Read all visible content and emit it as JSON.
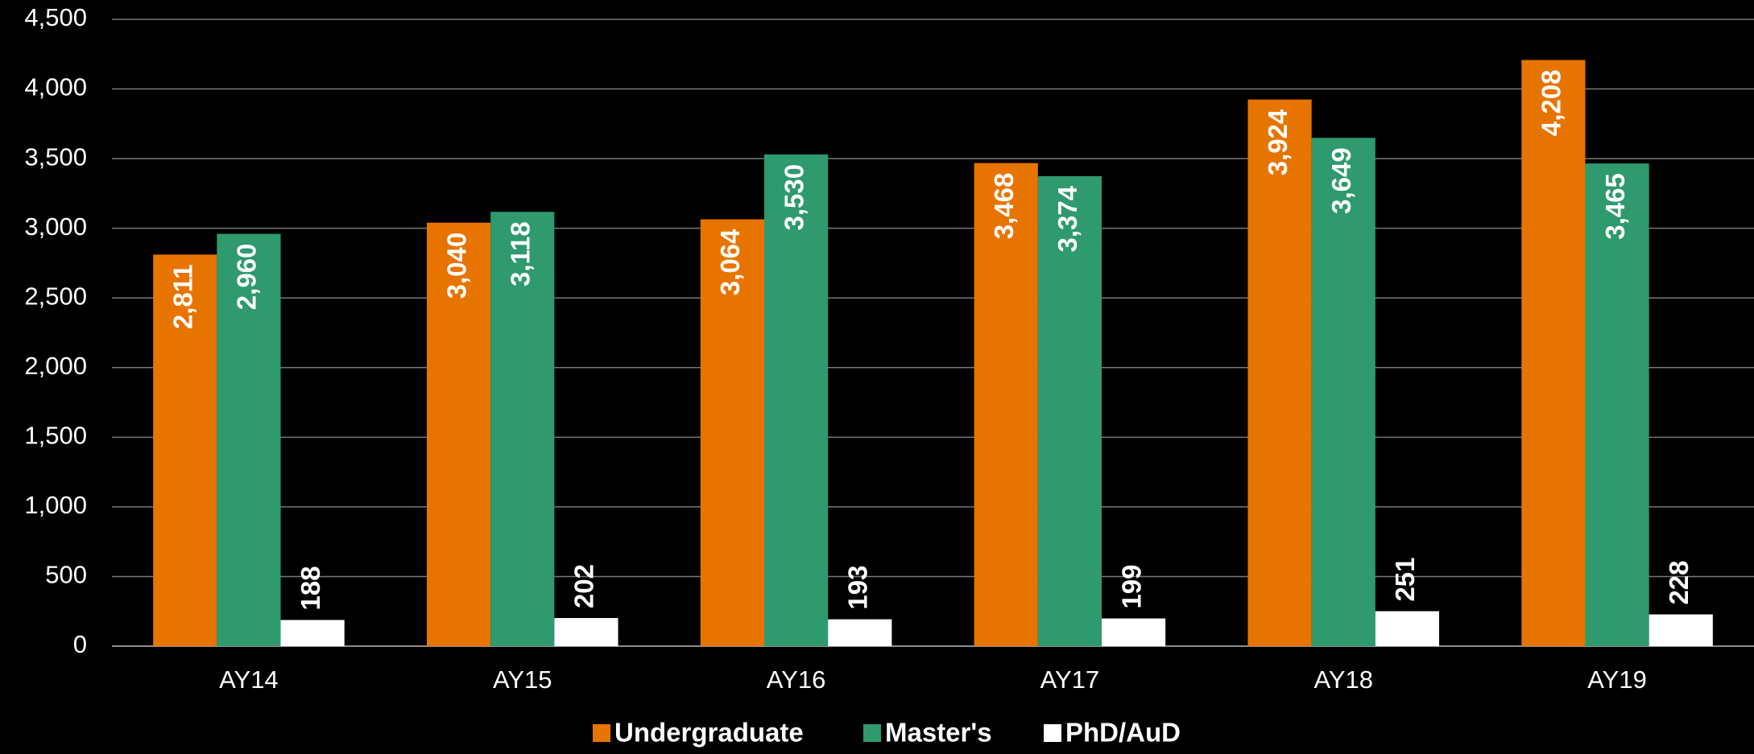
{
  "chart_data": {
    "type": "bar",
    "categories": [
      "AY14",
      "AY15",
      "AY16",
      "AY17",
      "AY18",
      "AY19"
    ],
    "series": [
      {
        "name": "Undergraduate",
        "color": "#e87400",
        "values": [
          2811,
          3040,
          3064,
          3468,
          3924,
          4208
        ],
        "value_labels": [
          "2,811",
          "3,040",
          "3,064",
          "3,468",
          "3,924",
          "4,208"
        ]
      },
      {
        "name": "Master's",
        "color": "#2e9a6e",
        "values": [
          2960,
          3118,
          3530,
          3374,
          3649,
          3465
        ],
        "value_labels": [
          "2,960",
          "3,118",
          "3,530",
          "3,374",
          "3,649",
          "3,465"
        ]
      },
      {
        "name": "PhD/AuD",
        "color": "#ffffff",
        "values": [
          188,
          202,
          193,
          199,
          251,
          228
        ]
      }
    ],
    "ylim": [
      0,
      4500
    ],
    "yticks": [
      0,
      500,
      {
        "value": 1000,
        "label": "1,000"
      },
      {
        "value": 1500,
        "label": "1,500"
      },
      {
        "value": 2000,
        "label": "2,000"
      },
      {
        "value": 2500,
        "label": "2,500"
      },
      {
        "value": 3000,
        "label": "3,000"
      },
      {
        "value": 3500,
        "label": "3,500"
      },
      {
        "value": 4000,
        "label": "4,000"
      },
      {
        "value": 4500,
        "label": "4,500"
      }
    ],
    "grid": true,
    "legend": "bottom"
  }
}
